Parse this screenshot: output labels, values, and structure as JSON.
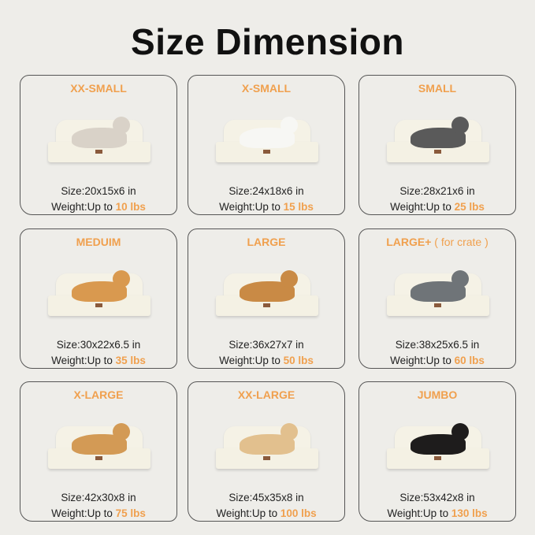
{
  "title": "Size Dimension",
  "accent_color": "#f0a04e",
  "size_prefix": "Size:",
  "weight_prefix": "Weight:Up to ",
  "sizes": [
    {
      "name": "XX-SMALL",
      "note": "",
      "size": "20x15x6 in",
      "weight": "10 lbs",
      "pet": "cat",
      "pet_color": "#d9d2c8"
    },
    {
      "name": "X-SMALL",
      "note": "",
      "size": "24x18x6 in",
      "weight": "15 lbs",
      "pet": "white dog",
      "pet_color": "#f7f7f4"
    },
    {
      "name": "SMALL",
      "note": "",
      "size": "28x21x6 in",
      "weight": "25 lbs",
      "pet": "schnauzer",
      "pet_color": "#5a5a5a"
    },
    {
      "name": "MEDUIM",
      "note": "",
      "size": "30x22x6.5 in",
      "weight": "35 lbs",
      "pet": "corgi",
      "pet_color": "#d9994f"
    },
    {
      "name": "LARGE",
      "note": "",
      "size": "36x27x7 in",
      "weight": "50 lbs",
      "pet": "golden retriever",
      "pet_color": "#c98a45"
    },
    {
      "name": "LARGE+",
      "note": "( for crate )",
      "size": "38x25x6.5 in",
      "weight": "60 lbs",
      "pet": "australian shepherd",
      "pet_color": "#6f7478"
    },
    {
      "name": "X-LARGE",
      "note": "",
      "size": "42x30x8 in",
      "weight": "75 lbs",
      "pet": "golden retriever",
      "pet_color": "#d39a55"
    },
    {
      "name": "XX-LARGE",
      "note": "",
      "size": "45x35x8 in",
      "weight": "100 lbs",
      "pet": "labrador",
      "pet_color": "#e2c08e"
    },
    {
      "name": "JUMBO",
      "note": "",
      "size": "53x42x8 in",
      "weight": "130 lbs",
      "pet": "bernese mountain dog",
      "pet_color": "#1e1c1c"
    }
  ]
}
